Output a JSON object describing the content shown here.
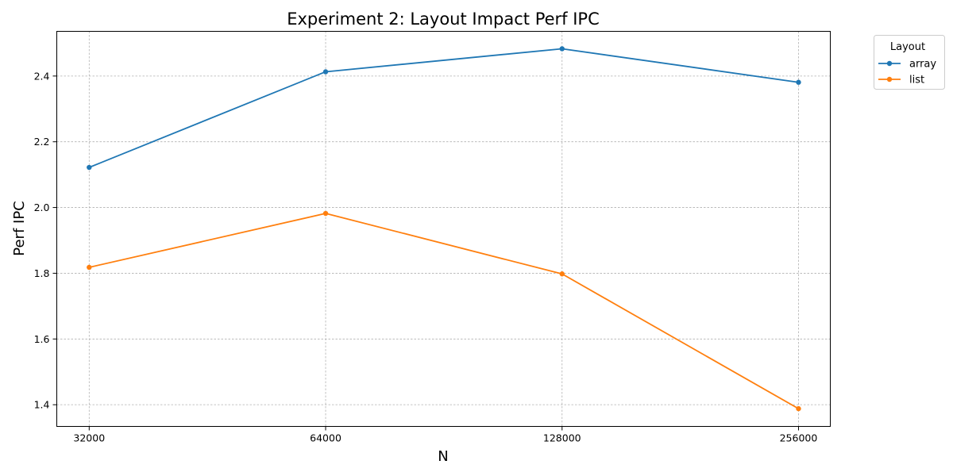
{
  "chart_data": {
    "type": "line",
    "title": "Experiment 2: Layout Impact Perf IPC",
    "xlabel": "N",
    "ylabel": "Perf IPC",
    "x_scale": "log2",
    "categories": [
      "32000",
      "64000",
      "128000",
      "256000"
    ],
    "x": [
      32000,
      64000,
      128000,
      256000
    ],
    "xlim": [
      29100,
      281000
    ],
    "ylim": [
      1.334,
      2.536
    ],
    "yticks": [
      1.4,
      1.6,
      1.8,
      2.0,
      2.2,
      2.4
    ],
    "ytick_labels": [
      "1.4",
      "1.6",
      "1.8",
      "2.0",
      "2.2",
      "2.4"
    ],
    "grid": true,
    "legend": {
      "title": "Layout",
      "placement": "outside-top-right"
    },
    "series": [
      {
        "name": "array",
        "color": "#1f77b4",
        "values": [
          2.122,
          2.413,
          2.483,
          2.381
        ]
      },
      {
        "name": "list",
        "color": "#ff7f0e",
        "values": [
          1.818,
          1.982,
          1.798,
          1.388
        ]
      }
    ]
  }
}
